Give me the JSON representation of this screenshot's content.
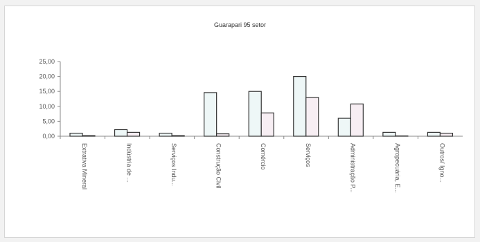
{
  "chart_data": {
    "type": "bar",
    "title": "Guarapari 95 setor",
    "categories": [
      "Extrativa Mineral",
      "Indústria de ...",
      "Serviços Indu...",
      "Construção Civil",
      "Comércio",
      "Serviços",
      "Administração P...",
      "Agropecuária, E...",
      "Outros/ Igno..."
    ],
    "series": [
      {
        "values": [
          1.0,
          2.2,
          1.0,
          14.6,
          15.0,
          20.0,
          6.0,
          1.3,
          1.3
        ]
      },
      {
        "values": [
          0.2,
          1.3,
          0.2,
          0.8,
          7.8,
          13.0,
          10.8,
          0.1,
          1.0
        ]
      }
    ],
    "ylim": [
      0,
      25
    ],
    "yticks": [
      "0,00",
      "5,00",
      "10,00",
      "15,00",
      "20,00",
      "25,00"
    ],
    "grid": false,
    "legend": "none",
    "colors": {
      "series1": "#eef7f7",
      "series2": "#f7eef3",
      "stroke": "#333333",
      "axis": "#888888"
    }
  }
}
